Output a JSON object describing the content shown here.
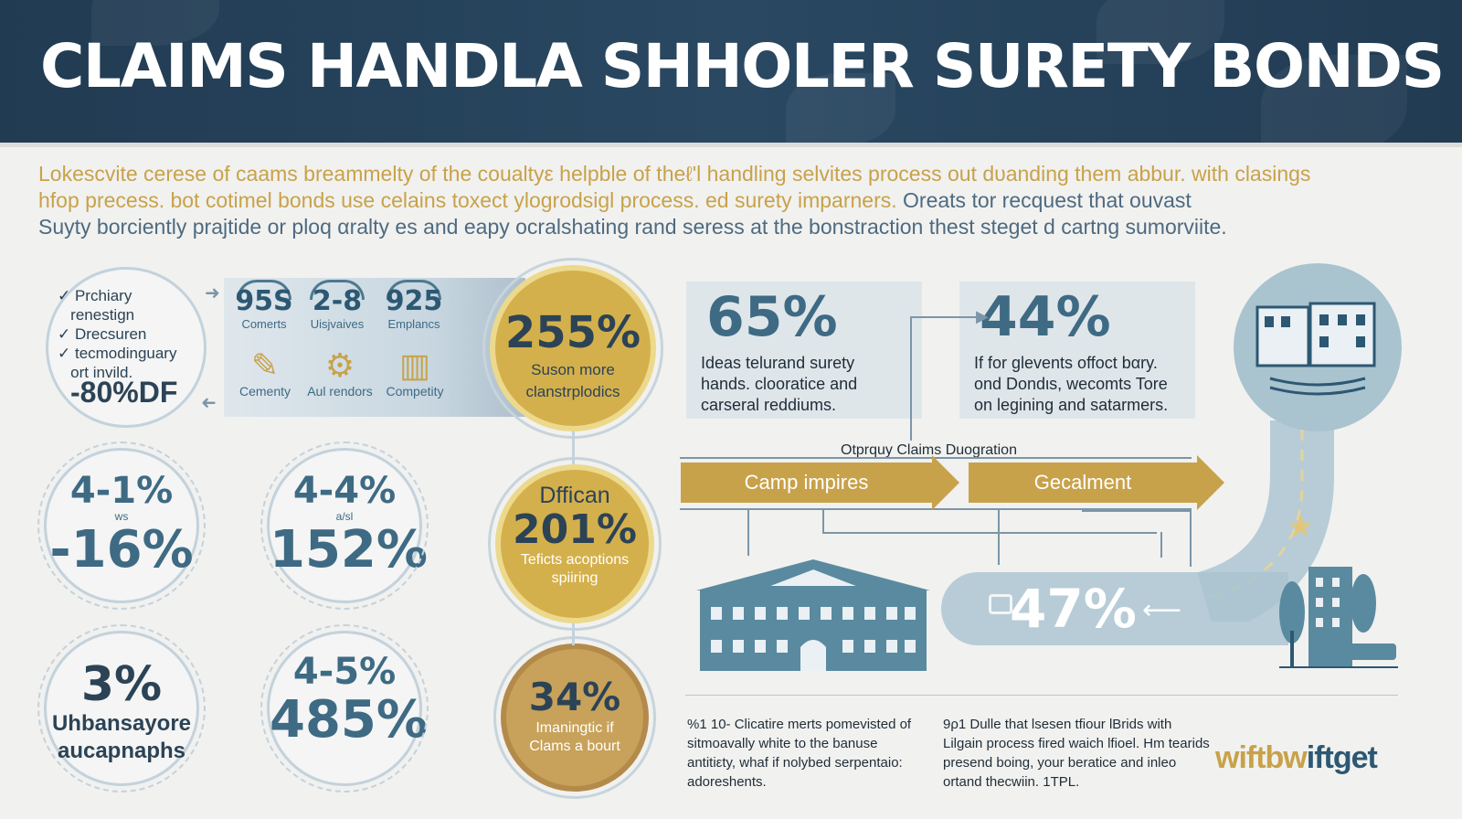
{
  "header": {
    "title": "CLAIMS HANDLA SHHOLER SURETY BONDS"
  },
  "intro": {
    "line1": "Lokescvite cerese of caams breammelty of the coualtyε helpble of theℓ'l handling selvites process out dυanding them abbur. with clasings",
    "line2_gold": "hfop precess. bot cotimel bonds use celains toxect ylogrodsigl process. ed surety imparners.",
    "line2_grey": " Oreats tor recquest that  ouvast",
    "line3": "Suyty borciently prajtide or ploq αralty es and eapy  ocralshating rand seress at the bonstraction thest  steget d cartng sumorviite."
  },
  "left_circle": {
    "bullets": [
      "Prchiary",
      "renestign",
      "Drecsuren",
      "tecmodinguary",
      "ort invild."
    ],
    "value": "-80%DF"
  },
  "panel": {
    "houses": [
      {
        "num": "95S",
        "label": "Comerts"
      },
      {
        "num": "2-8",
        "label": "Uisjvaives"
      },
      {
        "num": "925",
        "label": "Emplancs"
      }
    ],
    "tools": [
      {
        "icon": "✎",
        "label": "Cementy"
      },
      {
        "icon": "⚙",
        "label": "Aul rendors"
      },
      {
        "icon": "▥",
        "label": "Competity"
      }
    ]
  },
  "gold_circles": [
    {
      "pct": "255%",
      "sub1": "Suson more",
      "sub2": "clanstrplodics"
    },
    {
      "top": "Dffican",
      "pct": "201%",
      "sub1": "Teficts acoptions",
      "sub2": "spiiring"
    },
    {
      "pct": "34%",
      "sub1": "Imaningtic if",
      "sub2": "Clams a bourt"
    }
  ],
  "stat_circles": [
    {
      "a": "4-1%",
      "tiny": "ws",
      "b": "-16%"
    },
    {
      "a": "4-4%",
      "tiny": "a/sl",
      "b": "152%"
    },
    {
      "a": "3%",
      "t1": "Uhbansayore",
      "t2": "aucapnaphs"
    },
    {
      "a": "4-5%",
      "b": "485%"
    }
  ],
  "stat_boxes": [
    {
      "big": "65%",
      "lines": [
        "Ideas telurand surety",
        "hands. clooratice and",
        "carseral reddiums."
      ]
    },
    {
      "big": "44%",
      "lines": [
        "If for glevents offoct bαry.",
        "ond Dondιs, wecomts Tore",
        "on legining and satarmers."
      ]
    }
  ],
  "flow": {
    "title": "Otprquy Claims Duogration",
    "step1": "Camp impires",
    "step2": "Gecalment",
    "road_value": "47%"
  },
  "footnotes": {
    "left": [
      "%1 10- Clicatire merts pomevisted of",
      "sitmoavally white to the banuse",
      "antitiεty, whaf if nolybed serpentaio:",
      "adoreshents."
    ],
    "right": [
      "9ρ1 Dulle that lsesen tfiour lBrids with",
      "Lilgain process fired waich lfioel. Hm tearids",
      "presend boing, your beratice and inleo",
      "ortand thecwiin. 1TPL."
    ]
  },
  "logo": {
    "part1": "wiftbw",
    "part2": "iftget"
  },
  "colors": {
    "navy": "#213b52",
    "gold": "#c8a24a",
    "teal": "#3e6a84",
    "light_blue": "#a9c3cf"
  }
}
